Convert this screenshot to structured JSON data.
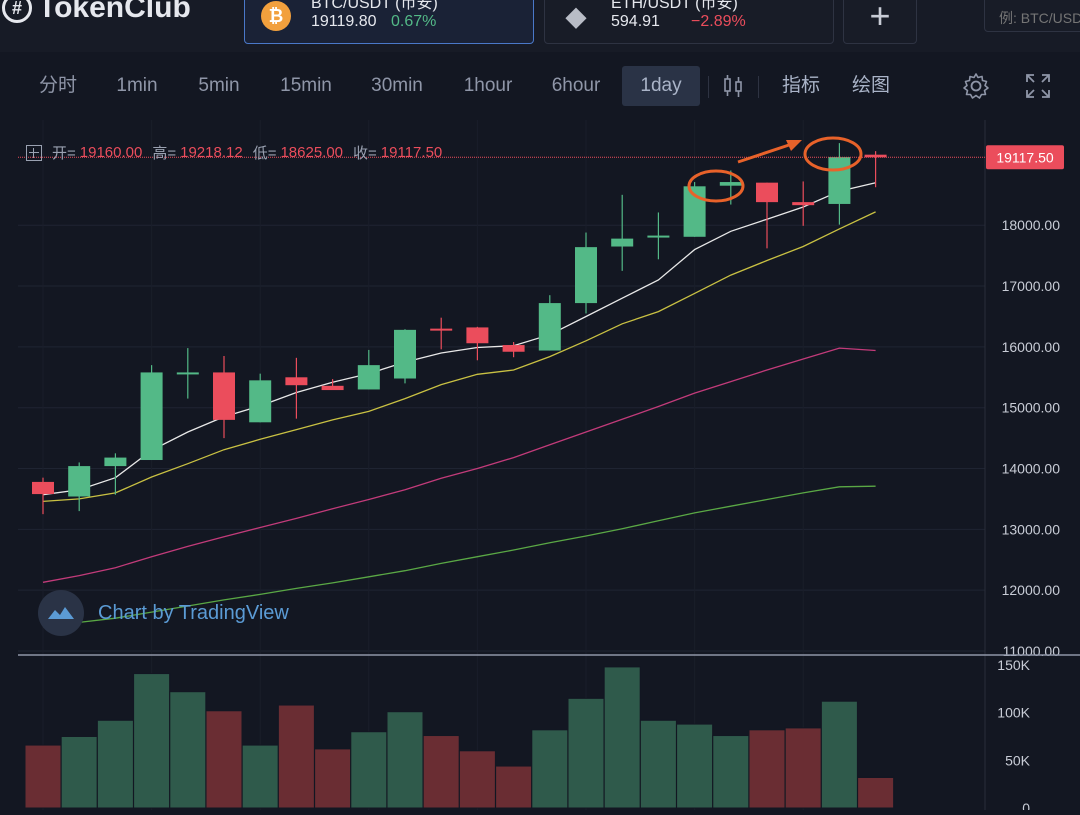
{
  "brand": {
    "name": "TokenClub"
  },
  "tickers": [
    {
      "icon": "bitcoin-icon",
      "symbol": "₿",
      "pair": "BTC/USDT (币安)",
      "price": "19119.80",
      "change": "0.67%",
      "direction": "up"
    },
    {
      "icon": "ethereum-icon",
      "symbol": "◆",
      "pair": "ETH/USDT (币安)",
      "price": "594.91",
      "change": "−2.89%",
      "direction": "down"
    }
  ],
  "add_label": "+",
  "search": {
    "placeholder": "例: BTC/USDT"
  },
  "toolbar": {
    "intervals": [
      "分时",
      "1min",
      "5min",
      "15min",
      "30min",
      "1hour",
      "6hour",
      "1day"
    ],
    "active_interval": "1day",
    "indicators_label": "指标",
    "draw_label": "绘图"
  },
  "ohlc": {
    "open_label": "开=",
    "open": "19160.00",
    "high_label": "高=",
    "high": "19218.12",
    "low_label": "低=",
    "low": "18625.00",
    "close_label": "收=",
    "close": "19117.50"
  },
  "watermark": "Chart by TradingView",
  "colors": {
    "up": "#53b987",
    "down": "#eb4d5c",
    "background": "#131722",
    "ma_fast": "#e8e8e8",
    "ma_mid": "#c9c143",
    "ma_slow": "#c23b7a",
    "ma_long": "#5aa845"
  },
  "chart_data": {
    "type": "candlestick",
    "title": "",
    "ylim": [
      11000,
      19500
    ],
    "y_ticks": [
      "11000.00",
      "12000.00",
      "13000.00",
      "14000.00",
      "15000.00",
      "16000.00",
      "17000.00",
      "18000.00"
    ],
    "last_price_label": "19117.50",
    "candles": [
      {
        "o": 13780,
        "h": 13850,
        "l": 13250,
        "c": 13580
      },
      {
        "o": 13540,
        "h": 14100,
        "l": 13300,
        "c": 14040
      },
      {
        "o": 14040,
        "h": 14250,
        "l": 13570,
        "c": 14180
      },
      {
        "o": 14140,
        "h": 15700,
        "l": 14140,
        "c": 15580
      },
      {
        "o": 15580,
        "h": 15980,
        "l": 15150,
        "c": 15580
      },
      {
        "o": 15580,
        "h": 15850,
        "l": 14500,
        "c": 14800
      },
      {
        "o": 14760,
        "h": 15560,
        "l": 14760,
        "c": 15450
      },
      {
        "o": 15500,
        "h": 15820,
        "l": 14820,
        "c": 15370
      },
      {
        "o": 15360,
        "h": 15470,
        "l": 15300,
        "c": 15290
      },
      {
        "o": 15300,
        "h": 15950,
        "l": 15300,
        "c": 15700
      },
      {
        "o": 15480,
        "h": 16290,
        "l": 15400,
        "c": 16280
      },
      {
        "o": 16300,
        "h": 16480,
        "l": 15960,
        "c": 16280
      },
      {
        "o": 16320,
        "h": 16330,
        "l": 15780,
        "c": 16060
      },
      {
        "o": 16030,
        "h": 16080,
        "l": 15830,
        "c": 15920
      },
      {
        "o": 15940,
        "h": 16850,
        "l": 15940,
        "c": 16720
      },
      {
        "o": 16720,
        "h": 17880,
        "l": 16550,
        "c": 17640
      },
      {
        "o": 17650,
        "h": 18500,
        "l": 17250,
        "c": 17780
      },
      {
        "o": 17800,
        "h": 18210,
        "l": 17440,
        "c": 17830
      },
      {
        "o": 17810,
        "h": 18710,
        "l": 17810,
        "c": 18640
      },
      {
        "o": 18650,
        "h": 18900,
        "l": 18340,
        "c": 18710
      },
      {
        "o": 18700,
        "h": 18700,
        "l": 17620,
        "c": 18380
      },
      {
        "o": 18380,
        "h": 18720,
        "l": 17990,
        "c": 18330
      },
      {
        "o": 18350,
        "h": 19350,
        "l": 18010,
        "c": 19120
      },
      {
        "o": 19160,
        "h": 19218.12,
        "l": 18625,
        "c": 19117.5
      }
    ],
    "moving_averages": [
      {
        "color": "#e8e8e8",
        "values": [
          13570,
          13650,
          13850,
          14300,
          14600,
          14850,
          15030,
          15250,
          15420,
          15560,
          15750,
          15900,
          15990,
          16020,
          16200,
          16500,
          16800,
          17100,
          17600,
          17900,
          18100,
          18300,
          18560,
          18700
        ]
      },
      {
        "color": "#c9c143",
        "values": [
          13460,
          13500,
          13600,
          13860,
          14080,
          14310,
          14480,
          14640,
          14800,
          14940,
          15150,
          15380,
          15550,
          15620,
          15840,
          16100,
          16380,
          16580,
          16880,
          17180,
          17420,
          17650,
          17940,
          18220
        ]
      },
      {
        "color": "#c23b7a",
        "values": [
          12130,
          12240,
          12370,
          12550,
          12720,
          12880,
          13030,
          13180,
          13340,
          13490,
          13650,
          13840,
          14000,
          14180,
          14390,
          14600,
          14810,
          15020,
          15240,
          15430,
          15620,
          15800,
          15980,
          15940
        ]
      },
      {
        "color": "#5aa845",
        "values": [
          11400,
          11470,
          11540,
          11640,
          11740,
          11840,
          11930,
          12030,
          12120,
          12220,
          12320,
          12440,
          12550,
          12660,
          12780,
          12890,
          13010,
          13140,
          13270,
          13380,
          13490,
          13600,
          13700,
          13710
        ]
      }
    ],
    "volume": {
      "ylim": [
        0,
        150
      ],
      "y_ticks": [
        "150K",
        "100K",
        "50K",
        "0"
      ],
      "values": [
        66,
        75,
        92,
        141,
        122,
        102,
        66,
        108,
        62,
        80,
        101,
        76,
        60,
        44,
        82,
        115,
        148,
        92,
        88,
        76,
        82,
        84,
        112,
        32
      ]
    }
  }
}
